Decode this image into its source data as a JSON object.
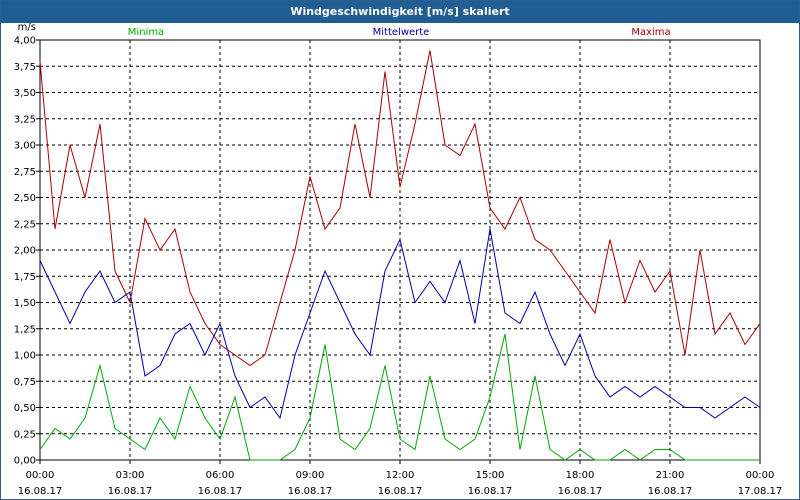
{
  "window": {
    "title": "Windgeschwindigkeit [m/s] skaliert"
  },
  "chart_data": {
    "type": "line",
    "title": "Windgeschwindigkeit [m/s] skaliert",
    "ylabel": "m/s",
    "ylim": [
      0,
      4.0
    ],
    "xlim": [
      0,
      24
    ],
    "y_ticks": [
      "0,00",
      "0,25",
      "0,50",
      "0,75",
      "1,00",
      "1,25",
      "1,50",
      "1,75",
      "2,00",
      "2,25",
      "2,50",
      "2,75",
      "3,00",
      "3,25",
      "3,50",
      "3,75",
      "4,00"
    ],
    "x_ticks": [
      {
        "time": "00:00",
        "date": "16.08.17"
      },
      {
        "time": "03:00",
        "date": "16.08.17"
      },
      {
        "time": "06:00",
        "date": "16.08.17"
      },
      {
        "time": "09:00",
        "date": "16.08.17"
      },
      {
        "time": "12:00",
        "date": "16.08.17"
      },
      {
        "time": "15:00",
        "date": "16.08.17"
      },
      {
        "time": "18:00",
        "date": "16.08.17"
      },
      {
        "time": "21:00",
        "date": "16.08.17"
      },
      {
        "time": "00:00",
        "date": "17.08.17"
      }
    ],
    "grid": true,
    "legend_position": "top",
    "colors": {
      "Minima": "#00aa00",
      "Mittelwerte": "#0000aa",
      "Maxima": "#aa0000"
    },
    "series": [
      {
        "name": "Minima",
        "x": [
          0,
          0.5,
          1,
          1.5,
          2,
          2.5,
          3,
          3.5,
          4,
          4.5,
          5,
          5.5,
          6,
          6.5,
          7,
          7.5,
          8,
          8.5,
          9,
          9.5,
          10,
          10.5,
          11,
          11.5,
          12,
          12.5,
          13,
          13.5,
          14,
          14.5,
          15,
          15.5,
          16,
          16.5,
          17,
          17.5,
          18,
          18.5,
          19,
          19.5,
          20,
          20.5,
          21,
          21.5,
          22,
          22.5,
          23,
          23.5,
          24
        ],
        "y": [
          0.1,
          0.3,
          0.2,
          0.4,
          0.9,
          0.3,
          0.2,
          0.1,
          0.4,
          0.2,
          0.7,
          0.4,
          0.2,
          0.6,
          0.0,
          0.0,
          0.0,
          0.1,
          0.4,
          1.1,
          0.2,
          0.1,
          0.3,
          0.9,
          0.2,
          0.1,
          0.8,
          0.2,
          0.1,
          0.2,
          0.6,
          1.2,
          0.1,
          0.8,
          0.1,
          0.0,
          0.1,
          0.0,
          0.0,
          0.1,
          0.0,
          0.1,
          0.1,
          0.0,
          0.0,
          0.0,
          0.0,
          0.0,
          0.0
        ]
      },
      {
        "name": "Mittelwerte",
        "x": [
          0,
          0.5,
          1,
          1.5,
          2,
          2.5,
          3,
          3.5,
          4,
          4.5,
          5,
          5.5,
          6,
          6.5,
          7,
          7.5,
          8,
          8.5,
          9,
          9.5,
          10,
          10.5,
          11,
          11.5,
          12,
          12.5,
          13,
          13.5,
          14,
          14.5,
          15,
          15.5,
          16,
          16.5,
          17,
          17.5,
          18,
          18.5,
          19,
          19.5,
          20,
          20.5,
          21,
          21.5,
          22,
          22.5,
          23,
          23.5,
          24
        ],
        "y": [
          1.9,
          1.6,
          1.3,
          1.6,
          1.8,
          1.5,
          1.6,
          0.8,
          0.9,
          1.2,
          1.3,
          1.0,
          1.3,
          0.8,
          0.5,
          0.6,
          0.4,
          1.0,
          1.4,
          1.8,
          1.5,
          1.2,
          1.0,
          1.8,
          2.1,
          1.5,
          1.7,
          1.5,
          1.9,
          1.3,
          2.2,
          1.4,
          1.3,
          1.6,
          1.2,
          0.9,
          1.2,
          0.8,
          0.6,
          0.7,
          0.6,
          0.7,
          0.6,
          0.5,
          0.5,
          0.4,
          0.5,
          0.6,
          0.5
        ]
      },
      {
        "name": "Maxima",
        "x": [
          0,
          0.5,
          1,
          1.5,
          2,
          2.5,
          3,
          3.5,
          4,
          4.5,
          5,
          5.5,
          6,
          6.5,
          7,
          7.5,
          8,
          8.5,
          9,
          9.5,
          10,
          10.5,
          11,
          11.5,
          12,
          12.5,
          13,
          13.5,
          14,
          14.5,
          15,
          15.5,
          16,
          16.5,
          17,
          17.5,
          18,
          18.5,
          19,
          19.5,
          20,
          20.5,
          21,
          21.5,
          22,
          22.5,
          23,
          23.5,
          24
        ],
        "y": [
          3.8,
          2.2,
          3.0,
          2.5,
          3.2,
          1.8,
          1.5,
          2.3,
          2.0,
          2.2,
          1.6,
          1.3,
          1.1,
          1.0,
          0.9,
          1.0,
          1.5,
          2.0,
          2.7,
          2.2,
          2.4,
          3.2,
          2.5,
          3.7,
          2.6,
          3.2,
          3.9,
          3.0,
          2.9,
          3.2,
          2.4,
          2.2,
          2.5,
          2.1,
          2.0,
          1.8,
          1.6,
          1.4,
          2.1,
          1.5,
          1.9,
          1.6,
          1.8,
          1.0,
          2.0,
          1.2,
          1.4,
          1.1,
          1.3
        ]
      }
    ]
  }
}
